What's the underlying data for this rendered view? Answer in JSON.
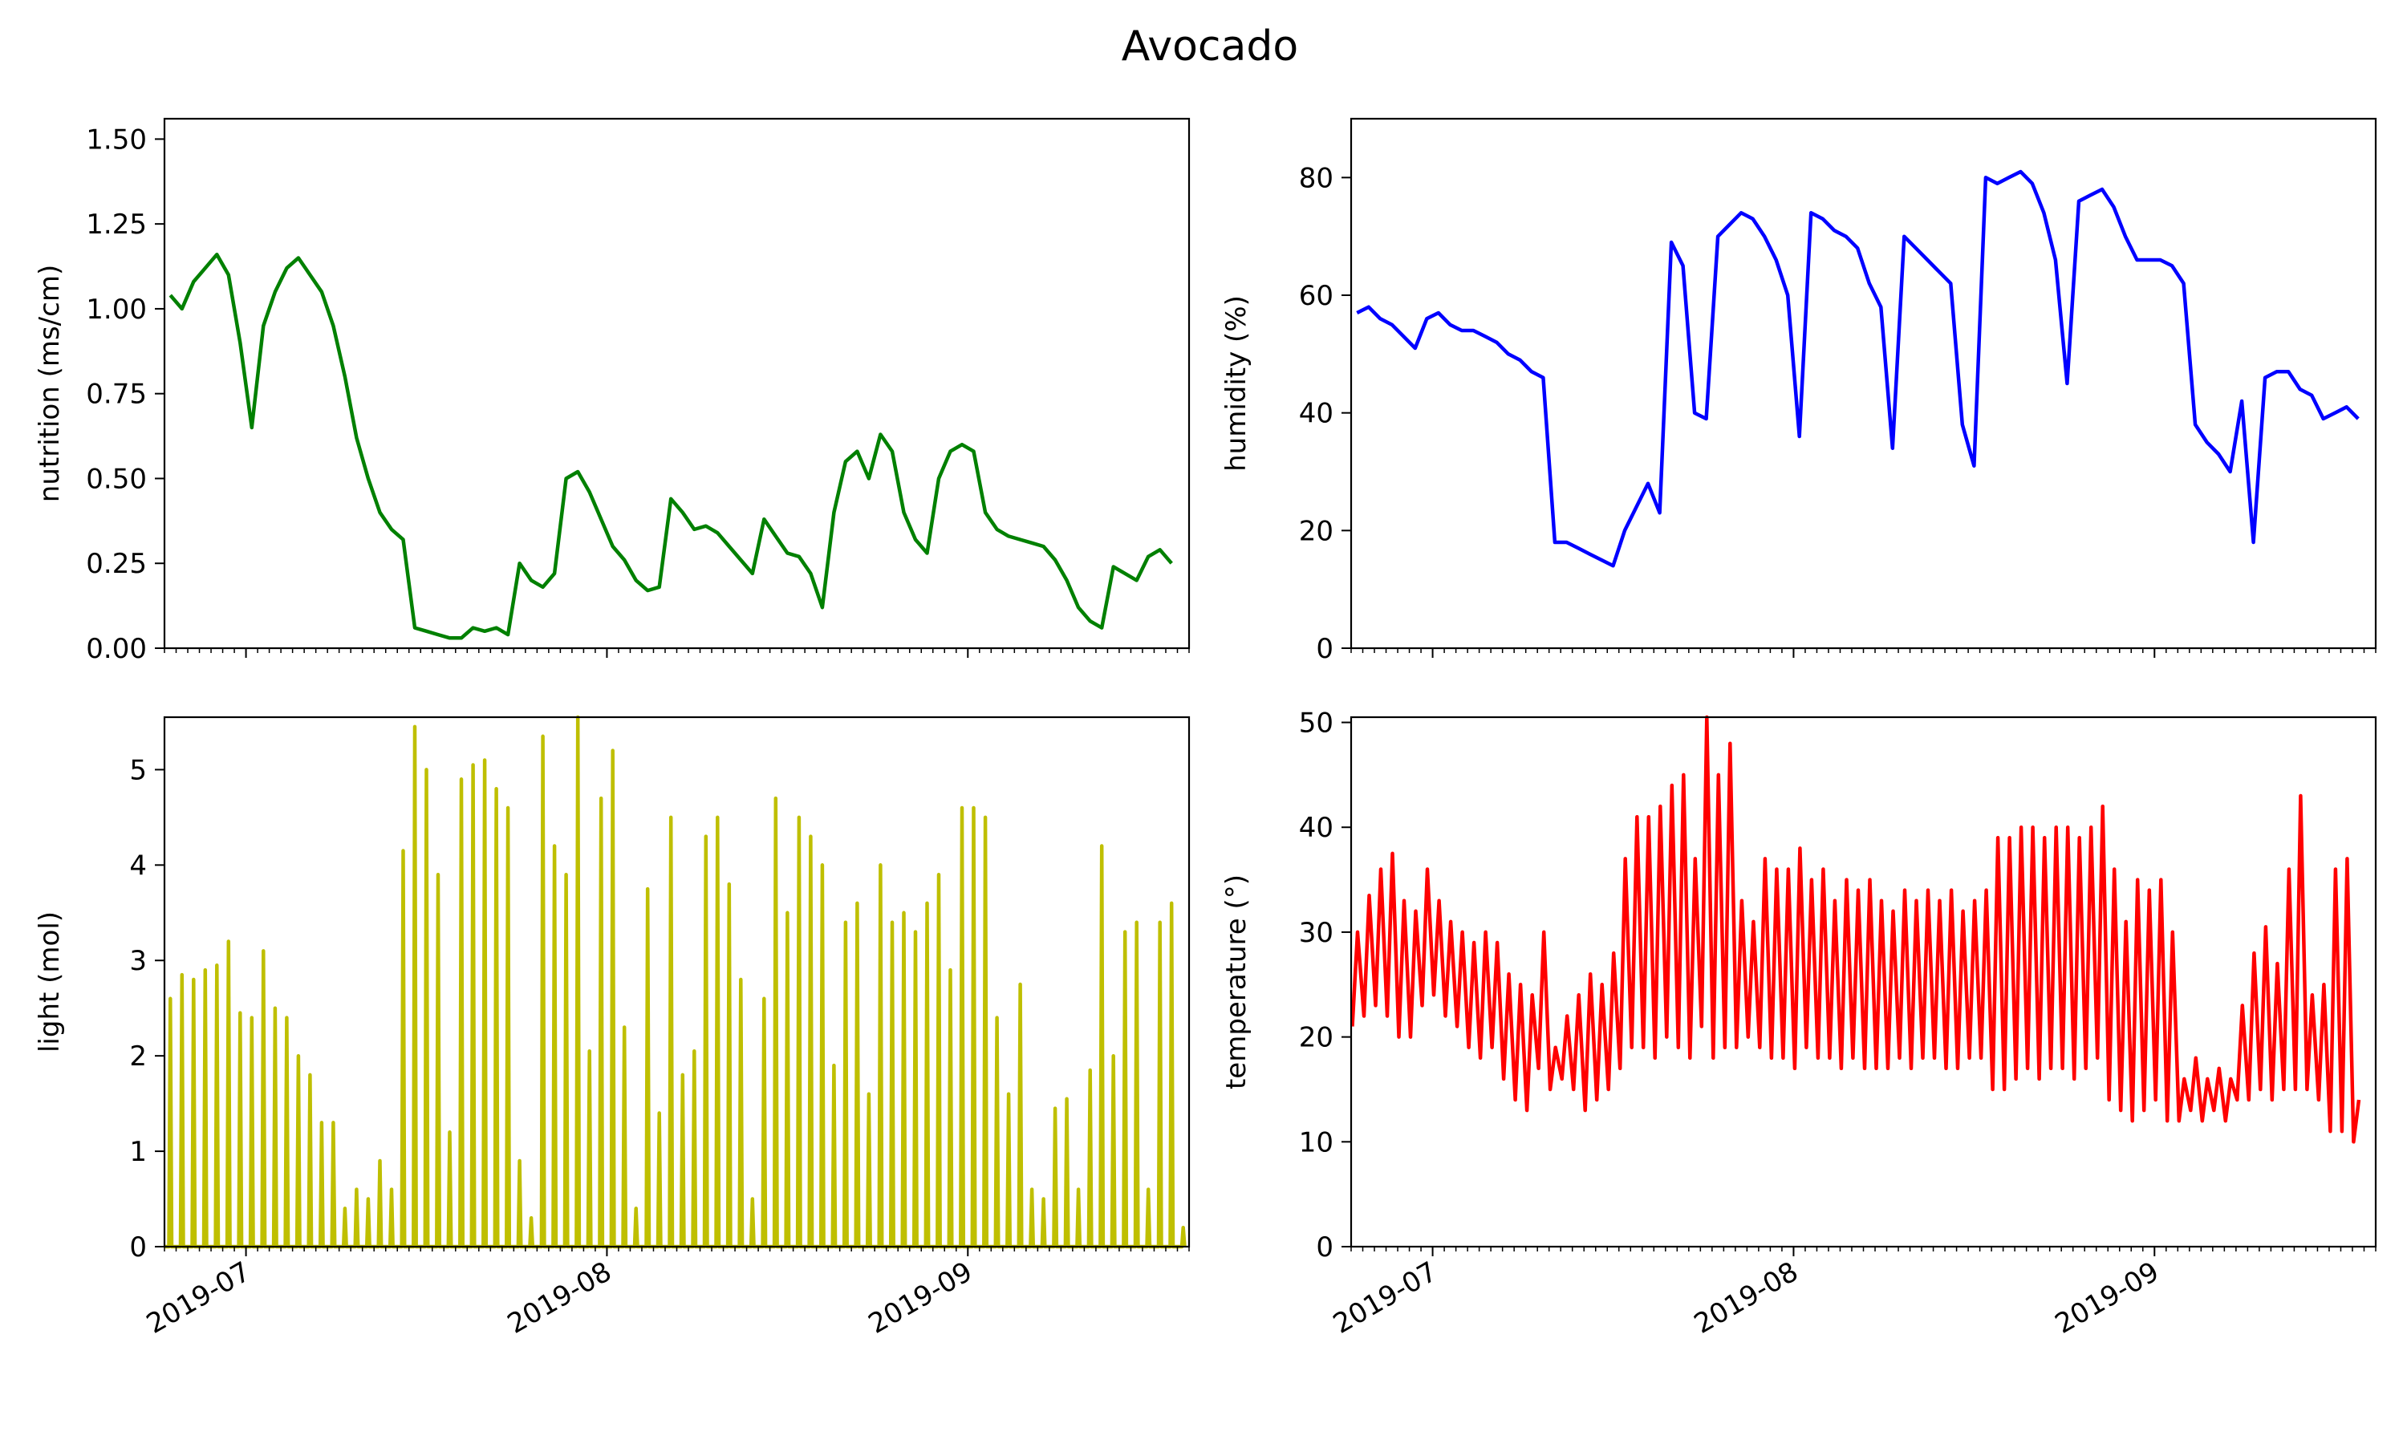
{
  "title": "Avocado",
  "x_axis": {
    "ticks": [
      "2019-07-01",
      "2019-08-01",
      "2019-09-01"
    ],
    "tick_labels": [
      "2019-07",
      "2019-08",
      "2019-09"
    ],
    "range": [
      "2019-06-24",
      "2019-09-20"
    ]
  },
  "chart_data": [
    {
      "type": "line",
      "name": "nutrition",
      "ylabel": "nutrition (ms/cm)",
      "ylim": [
        0,
        1.56
      ],
      "yticks": [
        0,
        0.25,
        0.5,
        0.75,
        1.0,
        1.25,
        1.5
      ],
      "ytick_labels": [
        "0.00",
        "0.25",
        "0.50",
        "0.75",
        "1.00",
        "1.25",
        "1.50"
      ],
      "color": "#008000",
      "x": [
        "2019-06-24",
        "2019-06-25",
        "2019-06-26",
        "2019-06-27",
        "2019-06-28",
        "2019-06-29",
        "2019-06-30",
        "2019-07-01",
        "2019-07-02",
        "2019-07-03",
        "2019-07-04",
        "2019-07-05",
        "2019-07-06",
        "2019-07-07",
        "2019-07-08",
        "2019-07-09",
        "2019-07-10",
        "2019-07-11",
        "2019-07-12",
        "2019-07-13",
        "2019-07-14",
        "2019-07-15",
        "2019-07-16",
        "2019-07-17",
        "2019-07-18",
        "2019-07-19",
        "2019-07-20",
        "2019-07-21",
        "2019-07-22",
        "2019-07-23",
        "2019-07-24",
        "2019-07-25",
        "2019-07-26",
        "2019-07-27",
        "2019-07-28",
        "2019-07-29",
        "2019-07-30",
        "2019-07-31",
        "2019-08-01",
        "2019-08-02",
        "2019-08-03",
        "2019-08-04",
        "2019-08-05",
        "2019-08-06",
        "2019-08-07",
        "2019-08-08",
        "2019-08-09",
        "2019-08-10",
        "2019-08-11",
        "2019-08-12",
        "2019-08-13",
        "2019-08-14",
        "2019-08-15",
        "2019-08-16",
        "2019-08-17",
        "2019-08-18",
        "2019-08-19",
        "2019-08-20",
        "2019-08-21",
        "2019-08-22",
        "2019-08-23",
        "2019-08-24",
        "2019-08-25",
        "2019-08-26",
        "2019-08-27",
        "2019-08-28",
        "2019-08-29",
        "2019-08-30",
        "2019-08-31",
        "2019-09-01",
        "2019-09-02",
        "2019-09-03",
        "2019-09-04",
        "2019-09-05",
        "2019-09-06",
        "2019-09-07",
        "2019-09-08",
        "2019-09-09",
        "2019-09-10",
        "2019-09-11",
        "2019-09-12",
        "2019-09-13",
        "2019-09-14",
        "2019-09-15",
        "2019-09-16",
        "2019-09-17",
        "2019-09-18"
      ],
      "y": [
        1.04,
        1.0,
        1.08,
        1.12,
        1.16,
        1.1,
        0.9,
        0.65,
        0.95,
        1.05,
        1.12,
        1.15,
        1.1,
        1.05,
        0.95,
        0.8,
        0.62,
        0.5,
        0.4,
        0.35,
        0.32,
        0.06,
        0.05,
        0.04,
        0.03,
        0.03,
        0.06,
        0.05,
        0.06,
        0.04,
        0.25,
        0.2,
        0.18,
        0.22,
        0.5,
        0.52,
        0.46,
        0.38,
        0.3,
        0.26,
        0.2,
        0.17,
        0.18,
        0.44,
        0.4,
        0.35,
        0.36,
        0.34,
        0.3,
        0.26,
        0.22,
        0.38,
        0.33,
        0.28,
        0.27,
        0.22,
        0.12,
        0.4,
        0.55,
        0.58,
        0.5,
        0.63,
        0.58,
        0.4,
        0.32,
        0.28,
        0.5,
        0.58,
        0.6,
        0.58,
        0.4,
        0.35,
        0.33,
        0.32,
        0.31,
        0.3,
        0.26,
        0.2,
        0.12,
        0.08,
        0.06,
        0.24,
        0.22,
        0.2,
        0.27,
        0.29,
        0.25
      ]
    },
    {
      "type": "line",
      "name": "humidity",
      "ylabel": "humidity (%)",
      "ylim": [
        0,
        90
      ],
      "yticks": [
        0,
        20,
        40,
        60,
        80
      ],
      "ytick_labels": [
        "0",
        "20",
        "40",
        "60",
        "80"
      ],
      "color": "#0000ff",
      "x": [
        "2019-06-24",
        "2019-06-25",
        "2019-06-26",
        "2019-06-27",
        "2019-06-28",
        "2019-06-29",
        "2019-06-30",
        "2019-07-01",
        "2019-07-02",
        "2019-07-03",
        "2019-07-04",
        "2019-07-05",
        "2019-07-06",
        "2019-07-07",
        "2019-07-08",
        "2019-07-09",
        "2019-07-10",
        "2019-07-11",
        "2019-07-12",
        "2019-07-13",
        "2019-07-14",
        "2019-07-15",
        "2019-07-16",
        "2019-07-17",
        "2019-07-18",
        "2019-07-19",
        "2019-07-20",
        "2019-07-21",
        "2019-07-22",
        "2019-07-23",
        "2019-07-24",
        "2019-07-25",
        "2019-07-26",
        "2019-07-27",
        "2019-07-28",
        "2019-07-29",
        "2019-07-30",
        "2019-07-31",
        "2019-08-01",
        "2019-08-02",
        "2019-08-03",
        "2019-08-04",
        "2019-08-05",
        "2019-08-06",
        "2019-08-07",
        "2019-08-08",
        "2019-08-09",
        "2019-08-10",
        "2019-08-11",
        "2019-08-12",
        "2019-08-13",
        "2019-08-14",
        "2019-08-15",
        "2019-08-16",
        "2019-08-17",
        "2019-08-18",
        "2019-08-19",
        "2019-08-20",
        "2019-08-21",
        "2019-08-22",
        "2019-08-23",
        "2019-08-24",
        "2019-08-25",
        "2019-08-26",
        "2019-08-27",
        "2019-08-28",
        "2019-08-29",
        "2019-08-30",
        "2019-08-31",
        "2019-09-01",
        "2019-09-02",
        "2019-09-03",
        "2019-09-04",
        "2019-09-05",
        "2019-09-06",
        "2019-09-07",
        "2019-09-08",
        "2019-09-09",
        "2019-09-10",
        "2019-09-11",
        "2019-09-12",
        "2019-09-13",
        "2019-09-14",
        "2019-09-15",
        "2019-09-16",
        "2019-09-17",
        "2019-09-18"
      ],
      "y": [
        57,
        58,
        56,
        55,
        53,
        51,
        56,
        57,
        55,
        54,
        54,
        53,
        52,
        50,
        49,
        47,
        46,
        18,
        18,
        17,
        16,
        15,
        14,
        20,
        24,
        28,
        23,
        69,
        65,
        40,
        39,
        70,
        72,
        74,
        73,
        70,
        66,
        60,
        36,
        74,
        73,
        71,
        70,
        68,
        62,
        58,
        34,
        70,
        68,
        66,
        64,
        62,
        38,
        31,
        80,
        79,
        80,
        81,
        79,
        74,
        66,
        45,
        76,
        77,
        78,
        75,
        70,
        66,
        66,
        66,
        65,
        62,
        38,
        35,
        33,
        30,
        42,
        18,
        46,
        47,
        47,
        44,
        43,
        39,
        40,
        41,
        39
      ]
    },
    {
      "type": "line",
      "name": "light",
      "ylabel": "light (mol)",
      "ylim": [
        0,
        5.55
      ],
      "yticks": [
        0,
        1,
        2,
        3,
        4,
        5
      ],
      "ytick_labels": [
        "0",
        "1",
        "2",
        "3",
        "4",
        "5"
      ],
      "color": "#bfbf00",
      "style": "daily_peaks",
      "x": [
        "2019-06-24",
        "2019-06-25",
        "2019-06-26",
        "2019-06-27",
        "2019-06-28",
        "2019-06-29",
        "2019-06-30",
        "2019-07-01",
        "2019-07-02",
        "2019-07-03",
        "2019-07-04",
        "2019-07-05",
        "2019-07-06",
        "2019-07-07",
        "2019-07-08",
        "2019-07-09",
        "2019-07-10",
        "2019-07-11",
        "2019-07-12",
        "2019-07-13",
        "2019-07-14",
        "2019-07-15",
        "2019-07-16",
        "2019-07-17",
        "2019-07-18",
        "2019-07-19",
        "2019-07-20",
        "2019-07-21",
        "2019-07-22",
        "2019-07-23",
        "2019-07-24",
        "2019-07-25",
        "2019-07-26",
        "2019-07-27",
        "2019-07-28",
        "2019-07-29",
        "2019-07-30",
        "2019-07-31",
        "2019-08-01",
        "2019-08-02",
        "2019-08-03",
        "2019-08-04",
        "2019-08-05",
        "2019-08-06",
        "2019-08-07",
        "2019-08-08",
        "2019-08-09",
        "2019-08-10",
        "2019-08-11",
        "2019-08-12",
        "2019-08-13",
        "2019-08-14",
        "2019-08-15",
        "2019-08-16",
        "2019-08-17",
        "2019-08-18",
        "2019-08-19",
        "2019-08-20",
        "2019-08-21",
        "2019-08-22",
        "2019-08-23",
        "2019-08-24",
        "2019-08-25",
        "2019-08-26",
        "2019-08-27",
        "2019-08-28",
        "2019-08-29",
        "2019-08-30",
        "2019-08-31",
        "2019-09-01",
        "2019-09-02",
        "2019-09-03",
        "2019-09-04",
        "2019-09-05",
        "2019-09-06",
        "2019-09-07",
        "2019-09-08",
        "2019-09-09",
        "2019-09-10",
        "2019-09-11",
        "2019-09-12",
        "2019-09-13",
        "2019-09-14",
        "2019-09-15",
        "2019-09-16",
        "2019-09-17",
        "2019-09-18",
        "2019-09-19"
      ],
      "y": [
        2.6,
        2.85,
        2.8,
        2.9,
        2.95,
        3.2,
        2.45,
        2.4,
        3.1,
        2.5,
        2.4,
        2.0,
        1.8,
        1.3,
        1.3,
        0.4,
        0.6,
        0.5,
        0.9,
        0.6,
        4.15,
        5.45,
        5.0,
        3.9,
        1.2,
        4.9,
        5.05,
        5.1,
        4.8,
        4.6,
        0.9,
        0.3,
        5.35,
        4.2,
        3.9,
        5.55,
        2.05,
        4.7,
        5.2,
        2.3,
        0.4,
        3.75,
        1.4,
        4.5,
        1.8,
        2.05,
        4.3,
        4.5,
        3.8,
        2.8,
        0.5,
        2.6,
        4.7,
        3.5,
        4.5,
        4.3,
        4.0,
        1.9,
        3.4,
        3.6,
        1.6,
        4.0,
        3.4,
        3.5,
        3.3,
        3.6,
        3.9,
        2.9,
        4.6,
        4.6,
        4.5,
        2.4,
        1.6,
        2.75,
        0.6,
        0.5,
        1.45,
        1.55,
        0.6,
        1.85,
        4.2,
        2.0,
        3.3,
        3.4,
        0.6,
        3.4,
        3.6,
        0.2
      ]
    },
    {
      "type": "line",
      "name": "temperature",
      "ylabel": "temperature (°)",
      "ylim": [
        0,
        50.5
      ],
      "yticks": [
        0,
        10,
        20,
        30,
        40,
        50
      ],
      "ytick_labels": [
        "0",
        "10",
        "20",
        "30",
        "40",
        "50"
      ],
      "color": "#ff0000",
      "style": "daily_cycle",
      "x": [
        "2019-06-24",
        "2019-06-25",
        "2019-06-26",
        "2019-06-27",
        "2019-06-28",
        "2019-06-29",
        "2019-06-30",
        "2019-07-01",
        "2019-07-02",
        "2019-07-03",
        "2019-07-04",
        "2019-07-05",
        "2019-07-06",
        "2019-07-07",
        "2019-07-08",
        "2019-07-09",
        "2019-07-10",
        "2019-07-11",
        "2019-07-12",
        "2019-07-13",
        "2019-07-14",
        "2019-07-15",
        "2019-07-16",
        "2019-07-17",
        "2019-07-18",
        "2019-07-19",
        "2019-07-20",
        "2019-07-21",
        "2019-07-22",
        "2019-07-23",
        "2019-07-24",
        "2019-07-25",
        "2019-07-26",
        "2019-07-27",
        "2019-07-28",
        "2019-07-29",
        "2019-07-30",
        "2019-07-31",
        "2019-08-01",
        "2019-08-02",
        "2019-08-03",
        "2019-08-04",
        "2019-08-05",
        "2019-08-06",
        "2019-08-07",
        "2019-08-08",
        "2019-08-09",
        "2019-08-10",
        "2019-08-11",
        "2019-08-12",
        "2019-08-13",
        "2019-08-14",
        "2019-08-15",
        "2019-08-16",
        "2019-08-17",
        "2019-08-18",
        "2019-08-19",
        "2019-08-20",
        "2019-08-21",
        "2019-08-22",
        "2019-08-23",
        "2019-08-24",
        "2019-08-25",
        "2019-08-26",
        "2019-08-27",
        "2019-08-28",
        "2019-08-29",
        "2019-08-30",
        "2019-08-31",
        "2019-09-01",
        "2019-09-02",
        "2019-09-03",
        "2019-09-04",
        "2019-09-05",
        "2019-09-06",
        "2019-09-07",
        "2019-09-08",
        "2019-09-09",
        "2019-09-10",
        "2019-09-11",
        "2019-09-12",
        "2019-09-13",
        "2019-09-14",
        "2019-09-15",
        "2019-09-16",
        "2019-09-17",
        "2019-09-18"
      ],
      "y_max": [
        30,
        33.5,
        36,
        37.5,
        33,
        32,
        36,
        33,
        31,
        30,
        29,
        30,
        29,
        26,
        25,
        24,
        30,
        19,
        22,
        24,
        26,
        25,
        28,
        37,
        41,
        41,
        42,
        44,
        45,
        37,
        50.5,
        45,
        48,
        33,
        31,
        37,
        36,
        36,
        38,
        35,
        36,
        33,
        35,
        34,
        35,
        33,
        32,
        34,
        33,
        34,
        33,
        34,
        32,
        33,
        34,
        39,
        39,
        40,
        40,
        39,
        40,
        40,
        39,
        40,
        42,
        36,
        31,
        35,
        34,
        35,
        30,
        16,
        18,
        16,
        17,
        16,
        23,
        28,
        30.5,
        27,
        36,
        43,
        24,
        25,
        36,
        37,
        14
      ],
      "y_min": [
        21,
        22,
        23,
        22,
        20,
        20,
        23,
        24,
        22,
        21,
        19,
        18,
        19,
        16,
        14,
        13,
        17,
        15,
        16,
        15,
        13,
        14,
        15,
        17,
        19,
        19,
        18,
        20,
        19,
        18,
        21,
        18,
        19,
        19,
        20,
        19,
        18,
        18,
        17,
        19,
        18,
        18,
        17,
        18,
        17,
        17,
        17,
        18,
        17,
        18,
        18,
        17,
        17,
        18,
        18,
        15,
        15,
        16,
        17,
        16,
        17,
        17,
        16,
        17,
        18,
        14,
        13,
        12,
        13,
        14,
        12,
        12,
        13,
        12,
        13,
        12,
        14,
        14,
        15,
        14,
        15,
        15,
        15,
        14,
        11,
        11,
        10
      ]
    }
  ]
}
